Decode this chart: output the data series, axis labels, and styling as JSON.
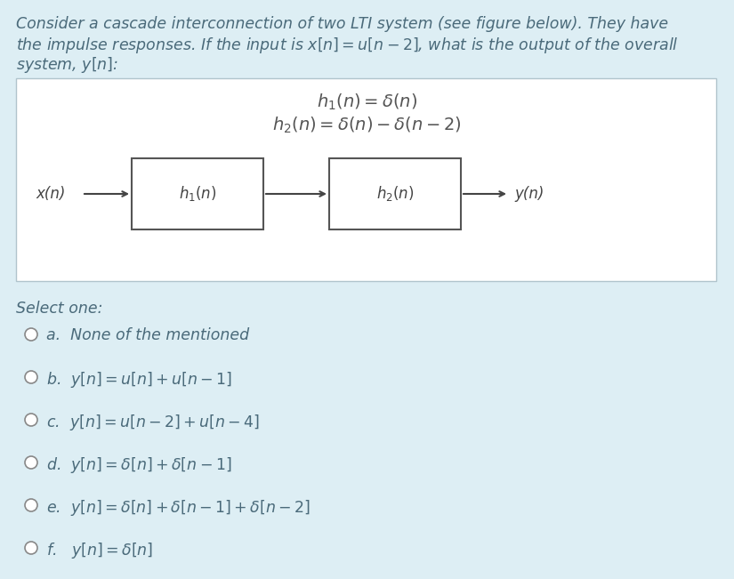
{
  "bg_color": "#ddeef4",
  "white_bg": "#ffffff",
  "text_color": "#4a6a7a",
  "diagram_border": "#cccccc",
  "box_edge": "#555555",
  "title_lines": [
    "Consider a cascade interconnection of two LTI system (see figure below). They have",
    "the impulse responses. If the input is $x[n] = u[n-2]$, what is the output of the overall",
    "system, $y[n]$:"
  ],
  "h1_eq": "$h_1(n) = \\delta(n)$",
  "h2_eq": "$h_2(n) = \\delta(n) - \\delta(n-2)$",
  "box1_label": "$h_1(n)$",
  "box2_label": "$h_2(n)$",
  "xn": "x(n)",
  "yn": "y(n)",
  "select_one": "Select one:",
  "opt_a": "a.  None of the mentioned",
  "opt_b": "b.  $y[n] = u[n] + u[n-1]$",
  "opt_c": "c.  $y[n] = u[n-2] + u[n-4]$",
  "opt_d": "d.  $y[n] = \\delta[n] + \\delta[n-1]$",
  "opt_e": "e.  $y[n] = \\delta[n] + \\delta[n-1] + \\delta[n-2]$",
  "opt_f": "f.   $y[n] = \\delta[n]$",
  "title_fontsize": 12.5,
  "eq_fontsize": 14,
  "diagram_fontsize": 12,
  "option_fontsize": 12.5
}
